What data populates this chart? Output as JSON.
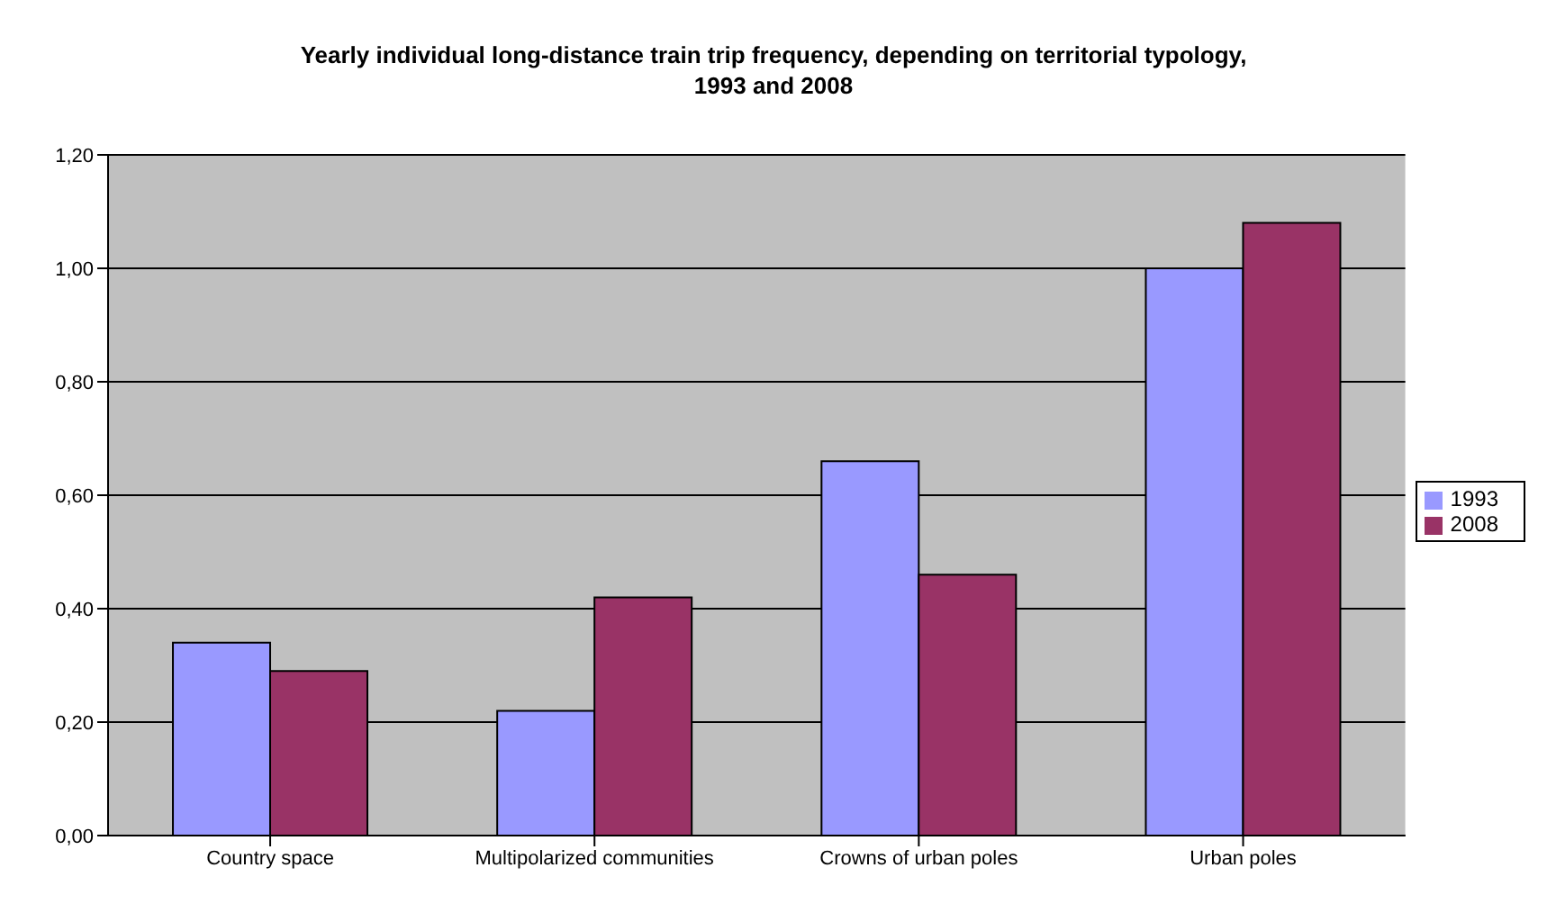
{
  "chart_data": {
    "type": "bar",
    "title": "Yearly individual long-distance train trip frequency, depending on territorial typology, 1993 and 2008",
    "categories": [
      "Country space",
      "Multipolarized communities",
      "Crowns of urban poles",
      "Urban poles"
    ],
    "series": [
      {
        "name": "1993",
        "color": "#9999ff",
        "values": [
          0.34,
          0.22,
          0.66,
          1.0
        ]
      },
      {
        "name": "2008",
        "color": "#993366",
        "values": [
          0.29,
          0.42,
          0.46,
          1.08
        ]
      }
    ],
    "ylim": [
      0,
      1.2
    ],
    "yticks": [
      {
        "value": 0,
        "label": "0,00"
      },
      {
        "value": 0.2,
        "label": "0,20"
      },
      {
        "value": 0.4,
        "label": "0,40"
      },
      {
        "value": 0.6,
        "label": "0,60"
      },
      {
        "value": 0.8,
        "label": "0,80"
      },
      {
        "value": 1,
        "label": "1,00"
      },
      {
        "value": 1.2,
        "label": "1,20"
      }
    ],
    "grid": "y",
    "legend": "right"
  }
}
